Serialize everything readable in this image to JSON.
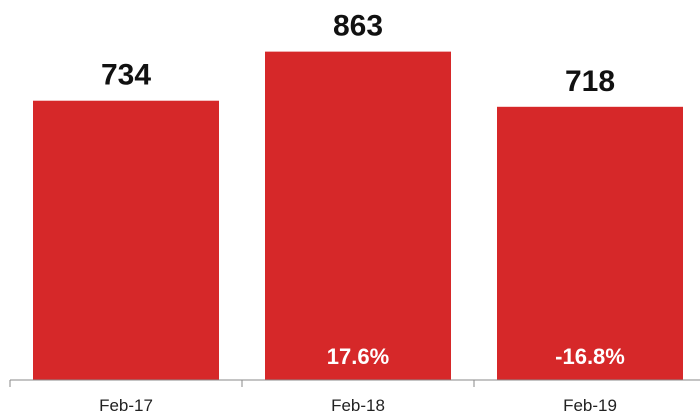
{
  "chart_data": {
    "type": "bar",
    "categories": [
      "Feb-17",
      "Feb-18",
      "Feb-19"
    ],
    "values": [
      734,
      863,
      718
    ],
    "value_labels": [
      "734",
      "863",
      "718"
    ],
    "change_labels": [
      "",
      "17.6%",
      "-16.8%"
    ],
    "title": "",
    "xlabel": "",
    "ylabel": "",
    "ylim": [
      0,
      1000
    ],
    "grid": false,
    "legend": "none",
    "colors": {
      "bar": "#d62829",
      "change_text": "#ffffff",
      "value_text": "#111111"
    }
  }
}
